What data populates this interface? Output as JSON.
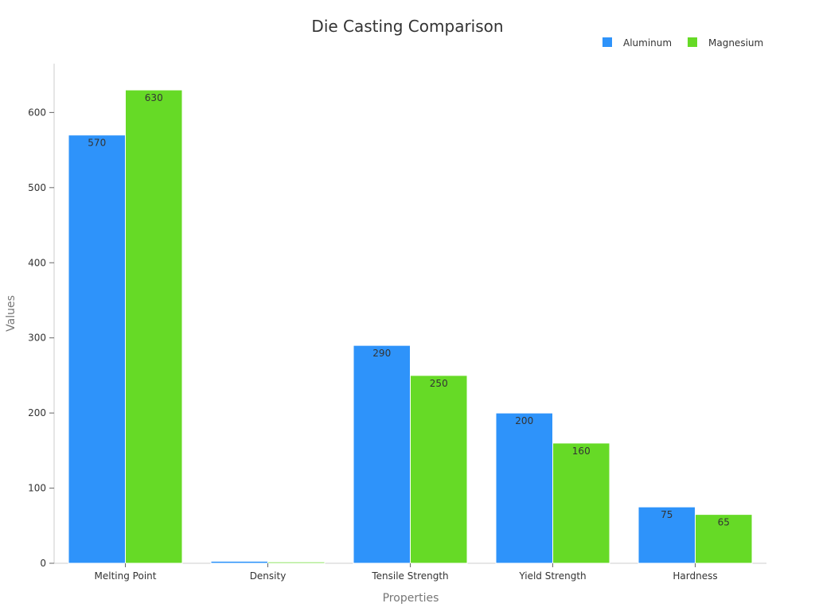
{
  "chart_data": {
    "type": "bar",
    "title": "Die Casting Comparison",
    "xlabel": "Properties",
    "ylabel": "Values",
    "categories": [
      "Melting Point",
      "Density",
      "Tensile Strength",
      "Yield Strength",
      "Hardness"
    ],
    "series": [
      {
        "name": "Aluminum",
        "color": "#2E93FA",
        "values": [
          570,
          2.7,
          290,
          200,
          75
        ],
        "labels": [
          "570",
          "",
          "290",
          "200",
          "75"
        ]
      },
      {
        "name": "Magnesium",
        "color": "#66DA26",
        "values": [
          630,
          1.8,
          250,
          160,
          65
        ],
        "labels": [
          "630",
          "",
          "250",
          "160",
          "65"
        ]
      }
    ],
    "ylim": [
      0,
      665
    ],
    "yticks": [
      0,
      100,
      200,
      300,
      400,
      500,
      600
    ],
    "legend": "top-right",
    "grid": false
  }
}
